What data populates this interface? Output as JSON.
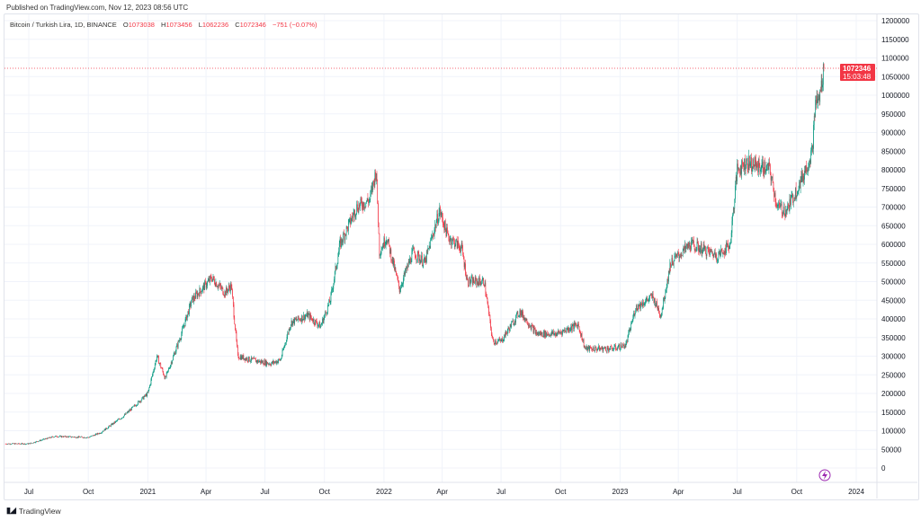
{
  "header": {
    "published": "Published on TradingView.com, Nov 12, 2023 08:56 UTC"
  },
  "legend": {
    "symbol": "Bitcoin / Turkish Lira, 1D, BINANCE",
    "o_label": "O",
    "o": "1073038",
    "h_label": "H",
    "h": "1073456",
    "l_label": "L",
    "l": "1062236",
    "c_label": "C",
    "c": "1072346",
    "change": "−751 (−0.07%)"
  },
  "last_price": {
    "value": "1072346",
    "countdown": "15:03:48",
    "color": "#f23645"
  },
  "footer": {
    "brand": "TradingView",
    "logo": "TV"
  },
  "colors": {
    "up": "#089981",
    "down": "#f23645",
    "grid": "#f0f3fa"
  },
  "chart_data": {
    "type": "candlestick",
    "title": "Bitcoin / Turkish Lira, 1D, BINANCE",
    "ylim": [
      0,
      1200000
    ],
    "yticks": [
      0,
      50000,
      100000,
      150000,
      200000,
      250000,
      300000,
      350000,
      400000,
      450000,
      500000,
      550000,
      600000,
      650000,
      700000,
      750000,
      800000,
      850000,
      900000,
      950000,
      1000000,
      1050000,
      1100000,
      1150000,
      1200000
    ],
    "xticks": [
      {
        "date": "2020-07-01",
        "label": "Jul"
      },
      {
        "date": "2020-10-01",
        "label": "Oct"
      },
      {
        "date": "2021-01-01",
        "label": "2021"
      },
      {
        "date": "2021-04-01",
        "label": "Apr"
      },
      {
        "date": "2021-07-01",
        "label": "Jul"
      },
      {
        "date": "2021-10-01",
        "label": "Oct"
      },
      {
        "date": "2022-01-01",
        "label": "2022"
      },
      {
        "date": "2022-04-01",
        "label": "Apr"
      },
      {
        "date": "2022-07-01",
        "label": "Jul"
      },
      {
        "date": "2022-10-01",
        "label": "Oct"
      },
      {
        "date": "2023-01-01",
        "label": "2023"
      },
      {
        "date": "2023-04-01",
        "label": "Apr"
      },
      {
        "date": "2023-07-01",
        "label": "Jul"
      },
      {
        "date": "2023-10-01",
        "label": "Oct"
      },
      {
        "date": "2024-01-01",
        "label": "2024"
      }
    ],
    "close_path": [
      [
        "2020-05-25",
        65000
      ],
      [
        "2020-07-01",
        65000
      ],
      [
        "2020-08-10",
        85000
      ],
      [
        "2020-10-01",
        82000
      ],
      [
        "2020-10-20",
        95000
      ],
      [
        "2020-11-25",
        140000
      ],
      [
        "2021-01-01",
        200000
      ],
      [
        "2021-01-15",
        300000
      ],
      [
        "2021-01-28",
        240000
      ],
      [
        "2021-02-20",
        350000
      ],
      [
        "2021-03-10",
        450000
      ],
      [
        "2021-04-10",
        510000
      ],
      [
        "2021-04-30",
        470000
      ],
      [
        "2021-05-10",
        490000
      ],
      [
        "2021-05-20",
        300000
      ],
      [
        "2021-06-10",
        290000
      ],
      [
        "2021-07-10",
        280000
      ],
      [
        "2021-07-25",
        290000
      ],
      [
        "2021-08-10",
        390000
      ],
      [
        "2021-09-05",
        410000
      ],
      [
        "2021-09-25",
        380000
      ],
      [
        "2021-10-10",
        450000
      ],
      [
        "2021-10-25",
        600000
      ],
      [
        "2021-11-20",
        700000
      ],
      [
        "2021-12-10",
        720000
      ],
      [
        "2021-12-20",
        800000
      ],
      [
        "2021-12-25",
        580000
      ],
      [
        "2022-01-05",
        620000
      ],
      [
        "2022-01-25",
        480000
      ],
      [
        "2022-02-15",
        580000
      ],
      [
        "2022-03-05",
        550000
      ],
      [
        "2022-03-28",
        690000
      ],
      [
        "2022-04-10",
        620000
      ],
      [
        "2022-05-01",
        590000
      ],
      [
        "2022-05-10",
        500000
      ],
      [
        "2022-06-05",
        500000
      ],
      [
        "2022-06-18",
        340000
      ],
      [
        "2022-07-01",
        340000
      ],
      [
        "2022-07-30",
        420000
      ],
      [
        "2022-08-25",
        360000
      ],
      [
        "2022-09-25",
        360000
      ],
      [
        "2022-10-28",
        385000
      ],
      [
        "2022-11-08",
        320000
      ],
      [
        "2022-12-20",
        320000
      ],
      [
        "2023-01-10",
        330000
      ],
      [
        "2023-01-25",
        430000
      ],
      [
        "2023-02-20",
        460000
      ],
      [
        "2023-03-05",
        410000
      ],
      [
        "2023-03-20",
        550000
      ],
      [
        "2023-04-20",
        600000
      ],
      [
        "2023-06-01",
        570000
      ],
      [
        "2023-06-20",
        600000
      ],
      [
        "2023-07-01",
        800000
      ],
      [
        "2023-07-15",
        820000
      ],
      [
        "2023-08-20",
        800000
      ],
      [
        "2023-09-01",
        700000
      ],
      [
        "2023-09-15",
        690000
      ],
      [
        "2023-10-10",
        780000
      ],
      [
        "2023-10-25",
        850000
      ],
      [
        "2023-10-30",
        980000
      ],
      [
        "2023-11-05",
        990000
      ],
      [
        "2023-11-12",
        1072346
      ]
    ]
  }
}
